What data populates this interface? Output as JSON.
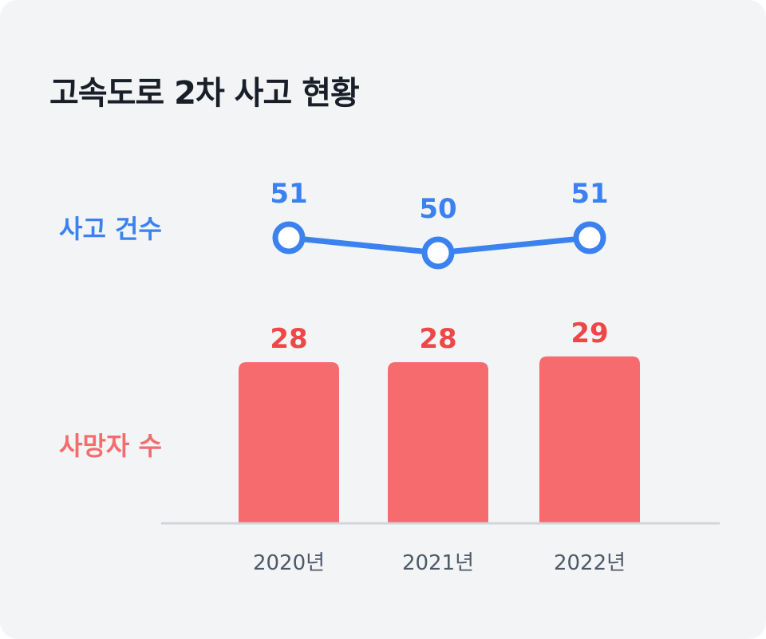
{
  "title": "고속도로 2차 사고 현황",
  "chart_data": {
    "type": "bar",
    "categories": [
      "2020년",
      "2021년",
      "2022년"
    ],
    "series": [
      {
        "name": "사고 건수",
        "type": "line",
        "values": [
          51,
          50,
          51
        ],
        "color": "#3b82f0"
      },
      {
        "name": "사망자 수",
        "type": "bar",
        "values": [
          28,
          28,
          29
        ],
        "color": "#f56b6e"
      }
    ],
    "grid": false
  },
  "colors": {
    "line": "#3b82f0",
    "bar": "#f56b6e",
    "bar_label": "#ef4747",
    "axis": "#d1d5da",
    "tick": "#4e5968"
  }
}
